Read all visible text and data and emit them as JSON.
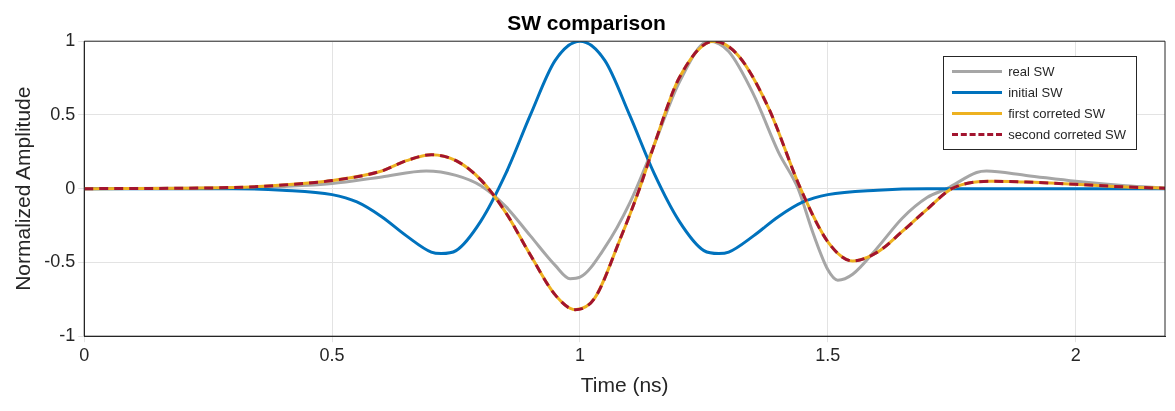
{
  "chart_data": {
    "type": "line",
    "title": "SW comparison",
    "xlabel": "Time (ns)",
    "ylabel": "Normalized Amplitude",
    "xlim": [
      0,
      2.18
    ],
    "xticks": [
      0,
      0.5,
      1,
      1.5,
      2
    ],
    "ylim": [
      -1,
      1
    ],
    "yticks": [
      -1,
      -0.5,
      0,
      0.5,
      1
    ],
    "grid": true,
    "legend": "top right",
    "marker": "none",
    "series": [
      {
        "name": "real SW",
        "color": "#a6a6a6",
        "line_style": "solid",
        "x": [
          0,
          0.3,
          0.4,
          0.5,
          0.6,
          0.69,
          0.75,
          0.8,
          0.85,
          0.9,
          0.95,
          0.98,
          1.0,
          1.05,
          1.1,
          1.15,
          1.2,
          1.26,
          1.3,
          1.35,
          1.4,
          1.44,
          1.47,
          1.5,
          1.52,
          1.55,
          1.6,
          1.65,
          1.7,
          1.74,
          1.8,
          1.82,
          1.9,
          2.0,
          2.1,
          2.18
        ],
        "values": [
          0,
          0.005,
          0.015,
          0.035,
          0.08,
          0.12,
          0.09,
          0.02,
          -0.12,
          -0.32,
          -0.52,
          -0.61,
          -0.6,
          -0.4,
          -0.1,
          0.3,
          0.72,
          1,
          0.93,
          0.64,
          0.25,
          0,
          -0.3,
          -0.55,
          -0.62,
          -0.58,
          -0.4,
          -0.2,
          -0.06,
          0,
          0.11,
          0.12,
          0.09,
          0.05,
          0.02,
          0.005
        ]
      },
      {
        "name": "initial SW",
        "color": "#0072bd",
        "line_style": "solid",
        "x": [
          0,
          0.3,
          0.4,
          0.5,
          0.55,
          0.6,
          0.65,
          0.7,
          0.72,
          0.75,
          0.8,
          0.85,
          0.9,
          0.95,
          1.0,
          1.05,
          1.1,
          1.15,
          1.2,
          1.25,
          1.28,
          1.3,
          1.35,
          1.4,
          1.45,
          1.5,
          1.6,
          1.7,
          2.18
        ],
        "values": [
          0,
          0,
          -0.01,
          -0.04,
          -0.09,
          -0.19,
          -0.32,
          -0.43,
          -0.44,
          -0.42,
          -0.22,
          0.1,
          0.5,
          0.87,
          1,
          0.87,
          0.5,
          0.1,
          -0.22,
          -0.42,
          -0.44,
          -0.43,
          -0.32,
          -0.19,
          -0.09,
          -0.04,
          -0.01,
          0,
          0
        ]
      },
      {
        "name": "first correted SW",
        "color": "#edb120",
        "line_style": "solid",
        "x": [
          0,
          0.3,
          0.4,
          0.5,
          0.6,
          0.65,
          0.7,
          0.75,
          0.8,
          0.85,
          0.9,
          0.95,
          0.99,
          1.03,
          1.08,
          1.12,
          1.15,
          1.2,
          1.27,
          1.32,
          1.38,
          1.445,
          1.5,
          1.55,
          1.6,
          1.65,
          1.7,
          1.75,
          1.83,
          1.9,
          2.0,
          2.1,
          2.18
        ],
        "values": [
          0,
          0.008,
          0.025,
          0.055,
          0.12,
          0.19,
          0.23,
          0.19,
          0.06,
          -0.16,
          -0.45,
          -0.72,
          -0.82,
          -0.74,
          -0.35,
          0,
          0.3,
          0.75,
          1,
          0.9,
          0.55,
          0,
          -0.36,
          -0.49,
          -0.43,
          -0.29,
          -0.14,
          0,
          0.05,
          0.045,
          0.03,
          0.012,
          0.003
        ]
      },
      {
        "name": "second correted SW",
        "color": "#a2142f",
        "line_style": "dashed",
        "x": [
          0,
          0.3,
          0.4,
          0.5,
          0.6,
          0.65,
          0.7,
          0.75,
          0.8,
          0.85,
          0.9,
          0.95,
          0.99,
          1.03,
          1.08,
          1.12,
          1.15,
          1.2,
          1.27,
          1.32,
          1.38,
          1.445,
          1.5,
          1.55,
          1.6,
          1.65,
          1.7,
          1.75,
          1.83,
          1.9,
          2.0,
          2.1,
          2.18
        ],
        "values": [
          0,
          0.008,
          0.025,
          0.055,
          0.12,
          0.19,
          0.23,
          0.19,
          0.06,
          -0.16,
          -0.45,
          -0.72,
          -0.82,
          -0.74,
          -0.35,
          0,
          0.3,
          0.75,
          1,
          0.9,
          0.55,
          0,
          -0.36,
          -0.49,
          -0.43,
          -0.29,
          -0.14,
          0,
          0.05,
          0.045,
          0.03,
          0.012,
          0.003
        ]
      }
    ]
  }
}
